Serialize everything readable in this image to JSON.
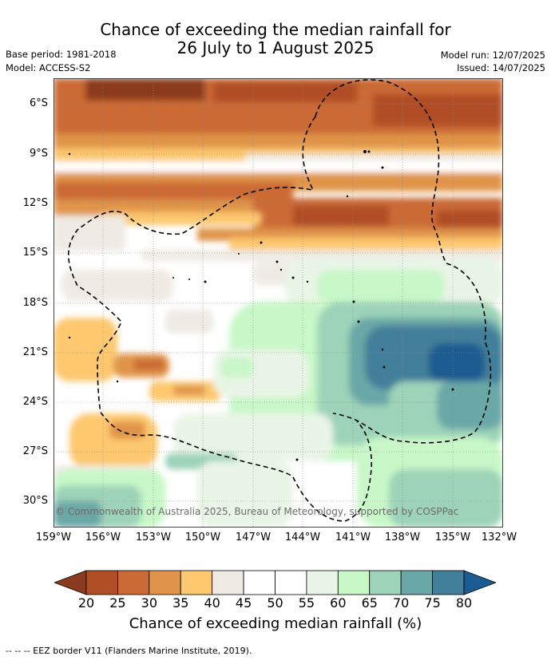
{
  "title": {
    "line1": "Chance of exceeding the median rainfall for",
    "line2": "26 July to 1 August 2025"
  },
  "meta": {
    "base_period": "Base period: 1981-2018",
    "model": "Model: ACCESS-S2",
    "model_run": "Model run: 12/07/2025",
    "issued": "Issued: 14/07/2025"
  },
  "map": {
    "lat_labels": [
      "6°S",
      "9°S",
      "12°S",
      "15°S",
      "18°S",
      "21°S",
      "24°S",
      "27°S",
      "30°S"
    ],
    "lon_labels": [
      "159°W",
      "156°W",
      "153°W",
      "150°W",
      "147°W",
      "144°W",
      "141°W",
      "138°W",
      "135°W",
      "132°W"
    ],
    "copyright": "© Commonwealth of Australia 2025, Bureau of Meteorology, supported by COSPPac"
  },
  "colorbar": {
    "ticks": [
      "20",
      "25",
      "30",
      "35",
      "40",
      "45",
      "50",
      "55",
      "60",
      "65",
      "70",
      "75",
      "80"
    ],
    "colors": [
      "#8b3a1e",
      "#b04e26",
      "#cb6a35",
      "#e0944a",
      "#fdc86e",
      "#efebe4",
      "#ffffff",
      "#ffffff",
      "#e9f5e6",
      "#c8f8c8",
      "#9dd3b8",
      "#6aa7a7",
      "#427f9a",
      "#1a5c91"
    ],
    "title": "Chance of exceeding median rainfall (%)"
  },
  "footer": "--  --  -- EEZ border V11 (Flanders Marine Institute, 2019)."
}
